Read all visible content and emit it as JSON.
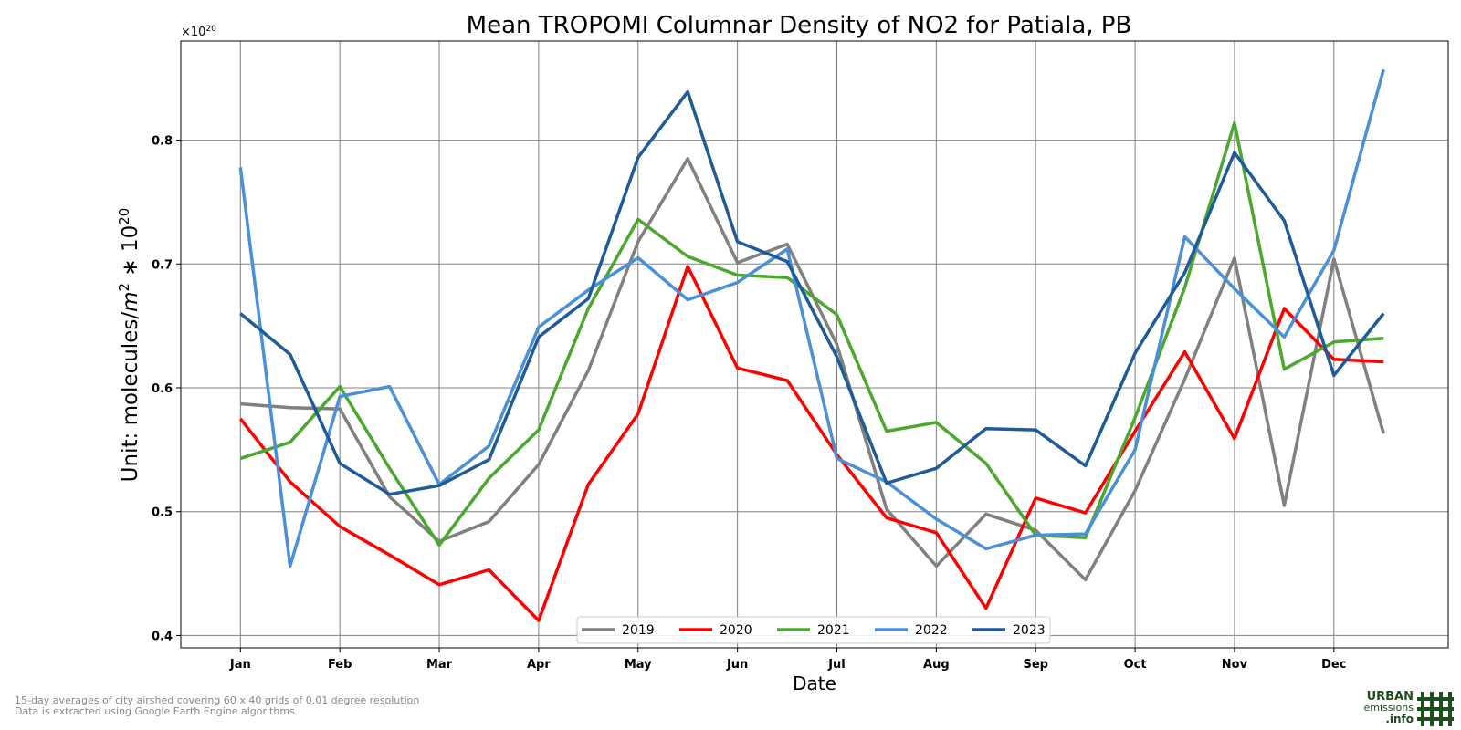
{
  "chart_data": {
    "type": "line",
    "title": "Mean TROPOMI Columnar Density of NO2 for Patiala, PB",
    "xlabel": "Date",
    "ylabel_prefix": "Unit: molecules/",
    "ylabel_unit": "m",
    "ylabel_unit_exp": "2",
    "ylabel_mult": " ∗ 10",
    "ylabel_mult_exp": "20",
    "offset_base": "×10",
    "offset_exp": "20",
    "ylim": [
      0.39,
      0.88
    ],
    "y_ticks": [
      "0.4",
      "0.5",
      "0.6",
      "0.7",
      "0.8"
    ],
    "x_tick_labels": [
      "Jan",
      "Feb",
      "Mar",
      "Apr",
      "May",
      "Jun",
      "Jul",
      "Aug",
      "Sep",
      "Oct",
      "Nov",
      "Dec"
    ],
    "x": [
      1,
      1.5,
      2,
      2.5,
      3,
      3.5,
      4,
      4.5,
      5,
      5.5,
      6,
      6.5,
      7,
      7.5,
      8,
      8.5,
      9,
      9.5,
      10,
      10.5,
      11,
      11.5,
      12,
      12.5
    ],
    "xlim": [
      0.4,
      13.15
    ],
    "grid": true,
    "legend_position": "bottom-center",
    "series": [
      {
        "name": "2019",
        "color": "#808080",
        "values": [
          0.587,
          0.584,
          0.583,
          0.512,
          0.476,
          0.492,
          0.538,
          0.614,
          0.718,
          0.785,
          0.701,
          0.716,
          0.635,
          0.502,
          0.456,
          0.498,
          0.485,
          0.445,
          0.517,
          0.607,
          0.705,
          0.505,
          0.704,
          0.563
        ]
      },
      {
        "name": "2020",
        "color": "#ff0000",
        "values": [
          0.575,
          0.524,
          0.488,
          0.465,
          0.441,
          0.453,
          0.412,
          0.522,
          0.579,
          0.698,
          0.616,
          0.606,
          0.546,
          0.495,
          0.483,
          0.422,
          0.511,
          0.499,
          0.565,
          0.629,
          0.559,
          0.664,
          0.623,
          0.621
        ]
      },
      {
        "name": "2021",
        "color": "#4ca72f",
        "values": [
          0.543,
          0.556,
          0.601,
          0.535,
          0.473,
          0.527,
          0.566,
          0.664,
          0.736,
          0.706,
          0.691,
          0.689,
          0.659,
          0.565,
          0.572,
          0.539,
          0.481,
          0.479,
          0.576,
          0.681,
          0.814,
          0.615,
          0.637,
          0.64
        ]
      },
      {
        "name": "2022",
        "color": "#4a90d9",
        "values": [
          0.778,
          0.456,
          0.593,
          0.601,
          0.522,
          0.553,
          0.649,
          0.679,
          0.705,
          0.671,
          0.685,
          0.712,
          0.543,
          0.524,
          0.494,
          0.47,
          0.481,
          0.482,
          0.55,
          0.722,
          0.68,
          0.641,
          0.711,
          0.857
        ]
      },
      {
        "name": "2023",
        "color": "#1f5b99",
        "values": [
          0.66,
          0.627,
          0.539,
          0.514,
          0.521,
          0.542,
          0.641,
          0.672,
          0.786,
          0.839,
          0.718,
          0.702,
          0.625,
          0.523,
          0.535,
          0.567,
          0.566,
          0.537,
          0.628,
          0.693,
          0.79,
          0.735,
          0.61,
          0.66
        ]
      }
    ]
  },
  "footnote": {
    "line1": "15-day averages of city airshed covering 60 x 40 grids of 0.01 degree resolution",
    "line2": "Data is extracted using Google Earth Engine algorithms"
  },
  "logo": {
    "line1": "URBAN",
    "line2": "emissions",
    "line3": ".info",
    "color": "#1e4d1e"
  }
}
